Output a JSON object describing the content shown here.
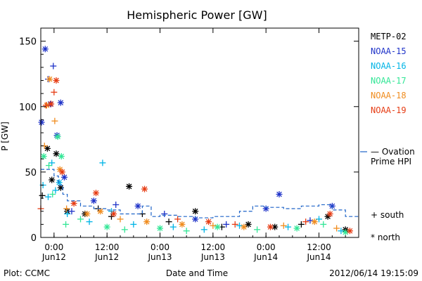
{
  "chart_data": {
    "type": "scatter",
    "title": "Hemispheric Power [GW]",
    "xlabel": "Date and Time",
    "ylabel": "P [GW]",
    "footer_left": "Plot: CCMC",
    "footer_right": "2012/06/14 19:15:09",
    "x_axis": {
      "type": "datetime",
      "range": [
        "2012-06-11 21:00",
        "2012-06-14 21:00"
      ],
      "ticks": [
        {
          "x": "2012-06-12 00:00",
          "top": "0:00",
          "bottom": "Jun12"
        },
        {
          "x": "2012-06-12 12:00",
          "top": "12:00",
          "bottom": "Jun12"
        },
        {
          "x": "2012-06-13 00:00",
          "top": "0:00",
          "bottom": "Jun13"
        },
        {
          "x": "2012-06-13 12:00",
          "top": "12:00",
          "bottom": "Jun13"
        },
        {
          "x": "2012-06-14 00:00",
          "top": "0:00",
          "bottom": "Jun14"
        },
        {
          "x": "2012-06-14 12:00",
          "top": "12:00",
          "bottom": "Jun14"
        }
      ]
    },
    "y_axis": {
      "range": [
        0,
        160
      ],
      "ticks": [
        0,
        50,
        100,
        150
      ]
    },
    "grid": false,
    "legend": {
      "placement": "right",
      "entries": [
        {
          "label": "METP-02",
          "color": "#000000"
        },
        {
          "label": "NOAA-15",
          "color": "#1e32c8"
        },
        {
          "label": "NOAA-16",
          "color": "#00b4e6"
        },
        {
          "label": "NOAA-17",
          "color": "#32e696"
        },
        {
          "label": "NOAA-18",
          "color": "#f08c1e"
        },
        {
          "label": "NOAA-19",
          "color": "#e63c14"
        }
      ],
      "ovation_label": [
        "— Ovation",
        "Prime HPI"
      ],
      "ovation_color": "#1e64c8",
      "marker_legend": [
        {
          "symbol": "+",
          "label": "south"
        },
        {
          "symbol": "*",
          "label": "north"
        }
      ]
    },
    "series": [
      {
        "name": "METP-02",
        "color": "#000000",
        "points": [
          [
            "2012-06-11 21:20",
            "+",
            32
          ],
          [
            "2012-06-11 22:30",
            "*",
            68
          ],
          [
            "2012-06-11 23:30",
            "*",
            44
          ],
          [
            "2012-06-12 00:30",
            "*",
            64
          ],
          [
            "2012-06-12 01:30",
            "*",
            38
          ],
          [
            "2012-06-12 03:00",
            "*",
            20
          ],
          [
            "2012-06-12 07:00",
            "*",
            18
          ],
          [
            "2012-06-12 10:00",
            "+",
            22
          ],
          [
            "2012-06-12 13:00",
            "+",
            16
          ],
          [
            "2012-06-12 17:00",
            "*",
            39
          ],
          [
            "2012-06-12 20:00",
            "+",
            18
          ],
          [
            "2012-06-13 02:00",
            "+",
            12
          ],
          [
            "2012-06-13 08:00",
            "*",
            20
          ],
          [
            "2012-06-13 14:00",
            "+",
            8
          ],
          [
            "2012-06-13 20:00",
            "*",
            10
          ],
          [
            "2012-06-14 02:00",
            "*",
            8
          ],
          [
            "2012-06-14 08:00",
            "+",
            10
          ],
          [
            "2012-06-14 14:00",
            "*",
            16
          ],
          [
            "2012-06-14 18:00",
            "*",
            6
          ]
        ]
      },
      {
        "name": "NOAA-15",
        "color": "#1e32c8",
        "points": [
          [
            "2012-06-11 21:10",
            "*",
            88
          ],
          [
            "2012-06-11 22:00",
            "*",
            144
          ],
          [
            "2012-06-11 22:40",
            "+",
            121
          ],
          [
            "2012-06-11 23:10",
            "*",
            102
          ],
          [
            "2012-06-11 23:50",
            "+",
            131
          ],
          [
            "2012-06-12 00:40",
            "*",
            78
          ],
          [
            "2012-06-12 01:30",
            "*",
            103
          ],
          [
            "2012-06-12 02:20",
            "*",
            46
          ],
          [
            "2012-06-12 04:00",
            "+",
            20
          ],
          [
            "2012-06-12 09:00",
            "*",
            28
          ],
          [
            "2012-06-12 14:00",
            "+",
            25
          ],
          [
            "2012-06-12 19:00",
            "*",
            24
          ],
          [
            "2012-06-13 01:00",
            "+",
            18
          ],
          [
            "2012-06-13 08:00",
            "*",
            14
          ],
          [
            "2012-06-13 15:00",
            "+",
            10
          ],
          [
            "2012-06-14 00:00",
            "*",
            22
          ],
          [
            "2012-06-14 03:00",
            "*",
            33
          ],
          [
            "2012-06-14 10:00",
            "+",
            13
          ],
          [
            "2012-06-14 15:00",
            "*",
            24
          ]
        ]
      },
      {
        "name": "NOAA-16",
        "color": "#00b4e6",
        "points": [
          [
            "2012-06-11 21:30",
            "+",
            40
          ],
          [
            "2012-06-11 22:40",
            "+",
            31
          ],
          [
            "2012-06-11 23:30",
            "+",
            57
          ],
          [
            "2012-06-12 00:20",
            "+",
            36
          ],
          [
            "2012-06-12 01:10",
            "*",
            42
          ],
          [
            "2012-06-12 03:00",
            "+",
            18
          ],
          [
            "2012-06-12 08:00",
            "+",
            12
          ],
          [
            "2012-06-12 11:00",
            "+",
            57
          ],
          [
            "2012-06-12 13:00",
            "+",
            20
          ],
          [
            "2012-06-12 18:00",
            "+",
            10
          ],
          [
            "2012-06-13 03:00",
            "+",
            8
          ],
          [
            "2012-06-13 10:00",
            "+",
            6
          ],
          [
            "2012-06-13 18:00",
            "+",
            9
          ],
          [
            "2012-06-14 05:00",
            "+",
            8
          ],
          [
            "2012-06-14 12:00",
            "+",
            14
          ],
          [
            "2012-06-14 17:00",
            "+",
            5
          ]
        ]
      },
      {
        "name": "NOAA-17",
        "color": "#32e696",
        "points": [
          [
            "2012-06-11 21:40",
            "*",
            62
          ],
          [
            "2012-06-11 22:50",
            "+",
            55
          ],
          [
            "2012-06-11 23:40",
            "+",
            33
          ],
          [
            "2012-06-12 00:50",
            "*",
            77
          ],
          [
            "2012-06-12 01:40",
            "*",
            62
          ],
          [
            "2012-06-12 02:40",
            "+",
            10
          ],
          [
            "2012-06-12 06:00",
            "+",
            14
          ],
          [
            "2012-06-12 12:00",
            "*",
            8
          ],
          [
            "2012-06-12 16:00",
            "+",
            6
          ],
          [
            "2012-06-13 00:00",
            "*",
            7
          ],
          [
            "2012-06-13 06:00",
            "+",
            5
          ],
          [
            "2012-06-13 13:00",
            "*",
            8
          ],
          [
            "2012-06-13 22:00",
            "+",
            6
          ],
          [
            "2012-06-14 07:00",
            "*",
            7
          ],
          [
            "2012-06-14 13:00",
            "+",
            10
          ],
          [
            "2012-06-14 18:00",
            "*",
            4
          ]
        ]
      },
      {
        "name": "NOAA-18",
        "color": "#f08c1e",
        "points": [
          [
            "2012-06-11 21:50",
            "+",
            70
          ],
          [
            "2012-06-11 22:20",
            "*",
            101
          ],
          [
            "2012-06-11 23:00",
            "*",
            121
          ],
          [
            "2012-06-12 00:10",
            "+",
            89
          ],
          [
            "2012-06-12 01:20",
            "*",
            52
          ],
          [
            "2012-06-12 02:50",
            "+",
            22
          ],
          [
            "2012-06-12 07:30",
            "*",
            18
          ],
          [
            "2012-06-12 10:30",
            "*",
            20
          ],
          [
            "2012-06-12 15:00",
            "+",
            14
          ],
          [
            "2012-06-12 21:00",
            "*",
            12
          ],
          [
            "2012-06-13 05:00",
            "*",
            10
          ],
          [
            "2012-06-13 12:00",
            "+",
            9
          ],
          [
            "2012-06-13 19:00",
            "*",
            8
          ],
          [
            "2012-06-14 04:00",
            "+",
            9
          ],
          [
            "2012-06-14 11:00",
            "*",
            12
          ],
          [
            "2012-06-14 16:00",
            "+",
            7
          ]
        ]
      },
      {
        "name": "NOAA-19",
        "color": "#e63c14",
        "points": [
          [
            "2012-06-11 21:00",
            "+",
            22
          ],
          [
            "2012-06-11 22:10",
            "+",
            101
          ],
          [
            "2012-06-11 23:20",
            "*",
            102
          ],
          [
            "2012-06-12 00:00",
            "+",
            111
          ],
          [
            "2012-06-12 00:30",
            "*",
            120
          ],
          [
            "2012-06-12 01:50",
            "*",
            50
          ],
          [
            "2012-06-12 04:30",
            "*",
            26
          ],
          [
            "2012-06-12 09:30",
            "*",
            34
          ],
          [
            "2012-06-12 13:30",
            "*",
            18
          ],
          [
            "2012-06-12 20:30",
            "*",
            37
          ],
          [
            "2012-06-13 04:00",
            "+",
            14
          ],
          [
            "2012-06-13 11:00",
            "*",
            12
          ],
          [
            "2012-06-13 17:00",
            "+",
            10
          ],
          [
            "2012-06-14 01:00",
            "*",
            8
          ],
          [
            "2012-06-14 09:00",
            "+",
            12
          ],
          [
            "2012-06-14 14:30",
            "*",
            18
          ],
          [
            "2012-06-14 19:00",
            "*",
            5
          ]
        ]
      },
      {
        "name": "Ovation Prime HPI",
        "type": "step",
        "color": "#1e64c8",
        "points": [
          [
            "2012-06-11 21:00",
            52
          ],
          [
            "2012-06-12 00:00",
            47
          ],
          [
            "2012-06-12 01:00",
            40
          ],
          [
            "2012-06-12 02:00",
            33
          ],
          [
            "2012-06-12 03:00",
            28
          ],
          [
            "2012-06-12 06:00",
            24
          ],
          [
            "2012-06-12 09:00",
            22
          ],
          [
            "2012-06-12 12:00",
            21
          ],
          [
            "2012-06-12 15:00",
            18
          ],
          [
            "2012-06-12 20:00",
            24
          ],
          [
            "2012-06-12 22:00",
            16
          ],
          [
            "2012-06-13 00:00",
            17
          ],
          [
            "2012-06-13 04:00",
            16
          ],
          [
            "2012-06-13 08:00",
            15
          ],
          [
            "2012-06-13 12:00",
            16
          ],
          [
            "2012-06-13 18:00",
            20
          ],
          [
            "2012-06-13 21:00",
            24
          ],
          [
            "2012-06-14 00:00",
            23
          ],
          [
            "2012-06-14 04:00",
            22
          ],
          [
            "2012-06-14 08:00",
            24
          ],
          [
            "2012-06-14 12:00",
            25
          ],
          [
            "2012-06-14 15:00",
            21
          ],
          [
            "2012-06-14 18:00",
            16
          ]
        ]
      }
    ]
  }
}
